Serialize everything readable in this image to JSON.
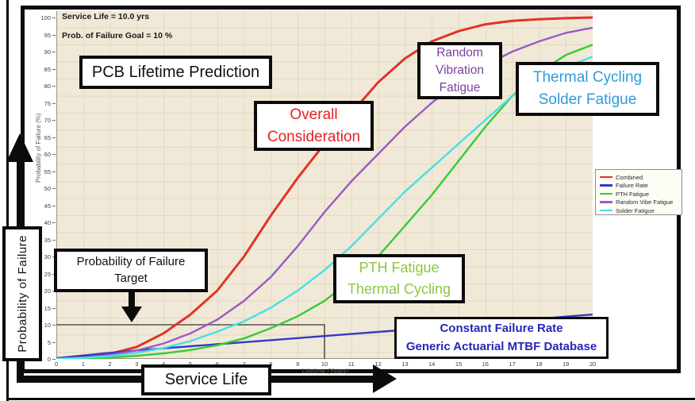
{
  "frame": {
    "border_color": "#0d0d0d",
    "page_background": "#ffffff"
  },
  "in_plot": {
    "service_life_note": "Service Life = 10.0 yrs",
    "failure_goal_note": "Prob. of Failure Goal = 10 %"
  },
  "callouts": {
    "pcb_title": {
      "text": "PCB Lifetime Prediction",
      "color": "#111111"
    },
    "overall": {
      "text": "Overall\nConsideration",
      "color": "#e8201e"
    },
    "random_vibration": {
      "text": "Random\nVibration\nFatigue",
      "color": "#7c3f9b"
    },
    "thermal_solder": {
      "text": "Thermal Cycling\nSolder Fatigue",
      "color": "#2e9bd9"
    },
    "pof_target": {
      "text": "Probability of Failure\nTarget",
      "color": "#111111"
    },
    "pth_thermal": {
      "text": "PTH Fatigue\nThermal Cycling",
      "color": "#8dc63f"
    },
    "constant_failure": {
      "text": "Constant Failure Rate\nGeneric Actuarial MTBF Database",
      "color": "#2626b8"
    },
    "service_life_axis": {
      "text": "Service Life",
      "color": "#111111"
    },
    "pof_axis": {
      "text": "Probability of Failure",
      "color": "#111111"
    }
  },
  "chart_data": {
    "type": "line",
    "title": "PCB Lifetime Prediction",
    "xlabel": "Lifetime (Years)",
    "ylabel": "Probability of Failure (%)",
    "xlim": [
      0,
      20
    ],
    "ylim": [
      0,
      100
    ],
    "x_tick_step": 1,
    "y_tick_step": 5,
    "grid": true,
    "plot_background": "#f1e9d7",
    "legend_position": "right",
    "x": [
      0,
      1,
      2,
      3,
      4,
      5,
      6,
      7,
      8,
      9,
      10,
      11,
      12,
      13,
      14,
      15,
      16,
      17,
      18,
      19,
      20
    ],
    "series": [
      {
        "name": "Combined",
        "color": "#e23327",
        "values": [
          0,
          0.5,
          1.5,
          3.5,
          7.5,
          13,
          20,
          30,
          42,
          53,
          63,
          72,
          81,
          88,
          93,
          96,
          98,
          99,
          99.5,
          99.8,
          100
        ]
      },
      {
        "name": "Failure Rate",
        "color": "#3339c8",
        "values": [
          0.2,
          1,
          1.8,
          2.5,
          3.1,
          3.7,
          4.3,
          4.9,
          5.5,
          6.1,
          6.7,
          7.3,
          7.9,
          8.5,
          9.1,
          9.7,
          10.3,
          11,
          11.7,
          12.4,
          13
        ]
      },
      {
        "name": "PTH Fatigue",
        "color": "#35cc35",
        "values": [
          0,
          0.1,
          0.4,
          0.9,
          1.6,
          2.6,
          4,
          6,
          9,
          12.5,
          17,
          23,
          30,
          39,
          48,
          58,
          68,
          77,
          84,
          89,
          92
        ]
      },
      {
        "name": "Random Vibe Fatigue",
        "color": "#9b59c6",
        "values": [
          0,
          0.4,
          1.2,
          2.5,
          4.5,
          7.5,
          11.5,
          17,
          24,
          33,
          43,
          52,
          60,
          68,
          75,
          81,
          86,
          90,
          93,
          95.5,
          97
        ]
      },
      {
        "name": "Solder Fatigue",
        "color": "#45e0e6",
        "values": [
          0,
          0.3,
          0.8,
          1.8,
          3.2,
          5.2,
          8,
          11,
          15,
          20,
          26,
          33,
          41,
          49,
          56,
          63,
          70,
          77,
          82,
          85.5,
          88.5
        ]
      }
    ],
    "target": {
      "service_life_years": 10,
      "prob_of_failure_pct": 10,
      "line_color": "#56524a"
    }
  }
}
